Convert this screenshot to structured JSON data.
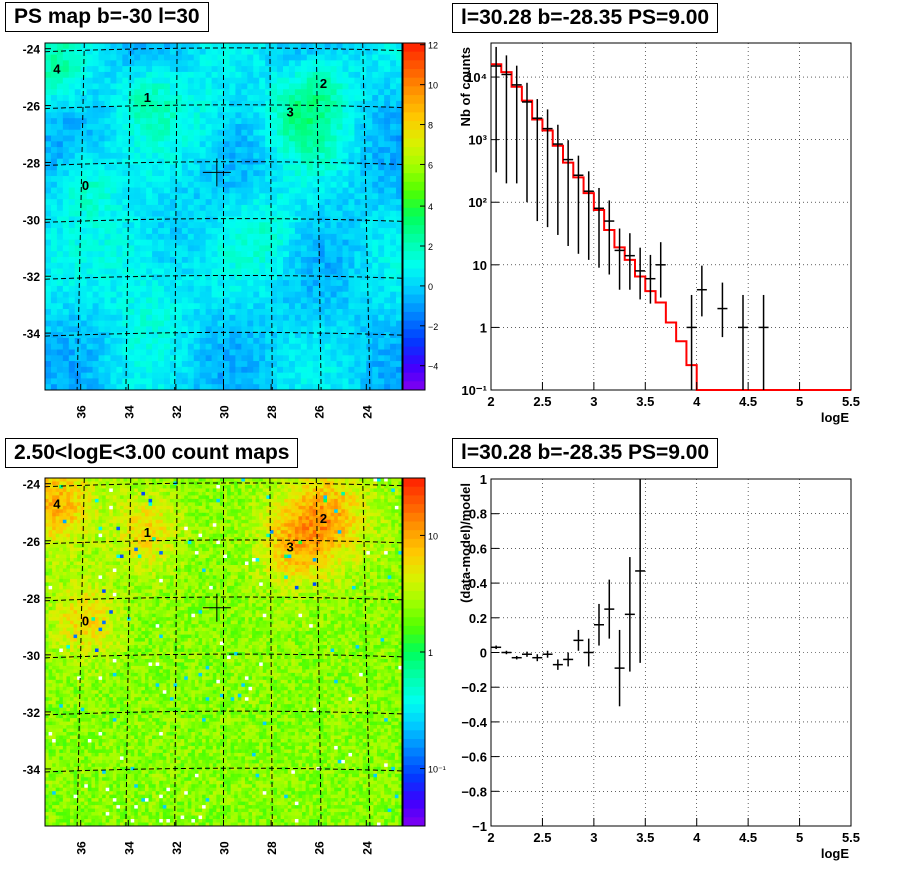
{
  "panels": {
    "ps_map": {
      "title": "PS map b=-30 l=30",
      "x_ticks": [
        "36",
        "34",
        "32",
        "30",
        "28",
        "26",
        "24"
      ],
      "y_ticks": [
        "-24",
        "-26",
        "-28",
        "-30",
        "-32",
        "-34"
      ],
      "colorbar_ticks": [
        "12",
        "10",
        "8",
        "6",
        "4",
        "2",
        "0",
        "−2",
        "−4"
      ],
      "sources": [
        "0",
        "1",
        "2",
        "3",
        "4"
      ]
    },
    "count_map": {
      "title": "2.50<logE<3.00 count maps",
      "x_ticks": [
        "36",
        "34",
        "32",
        "30",
        "28",
        "26",
        "24"
      ],
      "y_ticks": [
        "-24",
        "-26",
        "-28",
        "-30",
        "-32",
        "-34"
      ],
      "colorbar_ticks": [
        "10",
        "1",
        "10⁻¹"
      ],
      "sources": [
        "0",
        "1",
        "2",
        "3",
        "4"
      ]
    },
    "spectrum": {
      "title": "l=30.28 b=-28.35 PS=9.00",
      "xlabel": "logE",
      "ylabel": "Nb of counts",
      "x_ticks": [
        "2",
        "2.5",
        "3",
        "3.5",
        "4",
        "4.5",
        "5",
        "5.5"
      ],
      "y_ticks": [
        "10⁻¹",
        "1",
        "10",
        "10²",
        "10³",
        "10⁴"
      ]
    },
    "residual": {
      "title": "l=30.28 b=-28.35 PS=9.00",
      "xlabel": "logE",
      "ylabel": "(data-model)/model",
      "x_ticks": [
        "2",
        "2.5",
        "3",
        "3.5",
        "4",
        "4.5",
        "5",
        "5.5"
      ],
      "y_ticks": [
        "1",
        "0.8",
        "0.6",
        "0.4",
        "0.2",
        "0",
        "−0.2",
        "−0.4",
        "−0.6",
        "−0.8",
        "−1"
      ]
    }
  },
  "chart_data": [
    {
      "type": "heatmap",
      "title": "PS map b=-30 l=30",
      "xlim": [
        37.5,
        22.5
      ],
      "ylim": [
        -36,
        -23.8
      ],
      "zlim": [
        -5,
        12
      ],
      "marker": {
        "x": 30.28,
        "y": -28.35
      },
      "sources": [
        {
          "label": "0",
          "x": 35.8,
          "y": -28.8
        },
        {
          "label": "1",
          "x": 33.2,
          "y": -25.7
        },
        {
          "label": "2",
          "x": 25.8,
          "y": -25.2
        },
        {
          "label": "3",
          "x": 27.2,
          "y": -26.2
        },
        {
          "label": "4",
          "x": 37.0,
          "y": -24.7
        }
      ]
    },
    {
      "type": "heatmap",
      "title": "2.50<logE<3.00 count maps",
      "xlim": [
        37.5,
        22.5
      ],
      "ylim": [
        -36,
        -23.8
      ],
      "zlim": [
        0.05,
        25
      ],
      "zscale": "log",
      "marker": {
        "x": 30.28,
        "y": -28.35
      },
      "sources": [
        {
          "label": "0",
          "x": 35.8,
          "y": -28.8
        },
        {
          "label": "1",
          "x": 33.2,
          "y": -25.7
        },
        {
          "label": "2",
          "x": 25.8,
          "y": -25.2
        },
        {
          "label": "3",
          "x": 27.2,
          "y": -26.2
        },
        {
          "label": "4",
          "x": 37.0,
          "y": -24.7
        }
      ]
    },
    {
      "type": "line",
      "title": "l=30.28 b=-28.35 PS=9.00",
      "xlabel": "logE",
      "ylabel": "Nb of counts",
      "xlim": [
        2,
        5.5
      ],
      "ylim": [
        0.1,
        35000
      ],
      "yscale": "log",
      "grid": true,
      "model": {
        "name": "model",
        "color": "#ff0000",
        "bin_edges": [
          2.0,
          2.1,
          2.2,
          2.3,
          2.4,
          2.5,
          2.6,
          2.7,
          2.8,
          2.9,
          3.0,
          3.1,
          3.2,
          3.3,
          3.4,
          3.5,
          3.6,
          3.7,
          3.8,
          3.9,
          4.0,
          5.5
        ],
        "values": [
          16000,
          12000,
          7000,
          4200,
          2100,
          1400,
          800,
          430,
          250,
          140,
          75,
          36,
          19,
          12,
          6.5,
          3.8,
          2.5,
          1.2,
          0.6,
          0.25,
          0.1
        ]
      },
      "data": {
        "x": [
          2.05,
          2.15,
          2.25,
          2.35,
          2.45,
          2.55,
          2.65,
          2.75,
          2.85,
          2.95,
          3.05,
          3.15,
          3.25,
          3.35,
          3.45,
          3.55,
          3.65,
          3.95,
          4.05,
          4.25,
          4.45,
          4.65
        ],
        "y": [
          15000,
          11000,
          7500,
          4000,
          2200,
          1500,
          850,
          480,
          270,
          150,
          80,
          50,
          17,
          14,
          8,
          6,
          10,
          1,
          4,
          2,
          1,
          1
        ],
        "err_lo": [
          14700,
          10800,
          7300,
          3900,
          2150,
          1460,
          820,
          460,
          255,
          138,
          71,
          43,
          13,
          10,
          5.2,
          3.6,
          7,
          0.9,
          2.5,
          1.3,
          0.9,
          0.9
        ],
        "err_hi": [
          15300,
          11200,
          7700,
          4100,
          2250,
          1540,
          880,
          500,
          285,
          162,
          89,
          57,
          21,
          18,
          10.8,
          8.4,
          13,
          2.3,
          5.7,
          3.2,
          2.3,
          2.3
        ]
      }
    },
    {
      "type": "scatter",
      "title": "l=30.28 b=-28.35 PS=9.00",
      "xlabel": "logE",
      "ylabel": "(data-model)/model",
      "xlim": [
        2,
        5.5
      ],
      "ylim": [
        -1,
        1
      ],
      "grid": true,
      "x": [
        2.05,
        2.15,
        2.25,
        2.35,
        2.45,
        2.55,
        2.65,
        2.75,
        2.85,
        2.95,
        3.05,
        3.15,
        3.25,
        3.35,
        3.45
      ],
      "y": [
        0.03,
        0.0,
        -0.03,
        -0.01,
        -0.03,
        -0.01,
        -0.07,
        -0.04,
        0.07,
        0.0,
        0.16,
        0.25,
        -0.09,
        0.22,
        0.47
      ],
      "err": [
        0.01,
        0.01,
        0.01,
        0.015,
        0.02,
        0.02,
        0.03,
        0.04,
        0.06,
        0.08,
        0.12,
        0.17,
        0.22,
        0.33,
        0.53
      ]
    }
  ]
}
